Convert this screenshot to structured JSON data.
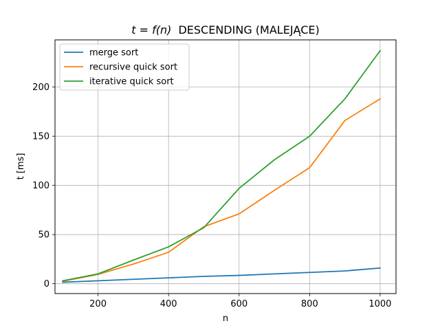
{
  "chart_data": {
    "type": "line",
    "title_prefix": "t = f(n)",
    "title_suffix": "DESCENDING (MALEJĄCE)",
    "xlabel": "n",
    "ylabel": "t [ms]",
    "xlim": [
      78,
      1045
    ],
    "ylim": [
      -10,
      248
    ],
    "xticks": [
      200,
      400,
      600,
      800,
      1000
    ],
    "yticks": [
      0,
      50,
      100,
      150,
      200
    ],
    "grid": true,
    "legend_position": "top-left",
    "series": [
      {
        "name": "merge sort",
        "color": "#1f77b4",
        "x": [
          100,
          200,
          300,
          400,
          500,
          600,
          700,
          800,
          900,
          1000
        ],
        "y": [
          1.5,
          3,
          4.5,
          6,
          7.5,
          8.5,
          10,
          11.5,
          13,
          16
        ]
      },
      {
        "name": "recursive quick sort",
        "color": "#ff7f0e",
        "x": [
          100,
          200,
          300,
          400,
          500,
          600,
          700,
          800,
          900,
          1000
        ],
        "y": [
          2.5,
          9.5,
          20,
          32,
          58,
          71,
          95,
          118,
          166,
          188
        ]
      },
      {
        "name": "iterative quick sort",
        "color": "#2ca02c",
        "x": [
          100,
          200,
          300,
          400,
          500,
          600,
          700,
          800,
          900,
          1000
        ],
        "y": [
          3,
          10,
          24,
          37.5,
          57,
          97,
          126,
          150,
          188,
          237
        ]
      }
    ]
  }
}
